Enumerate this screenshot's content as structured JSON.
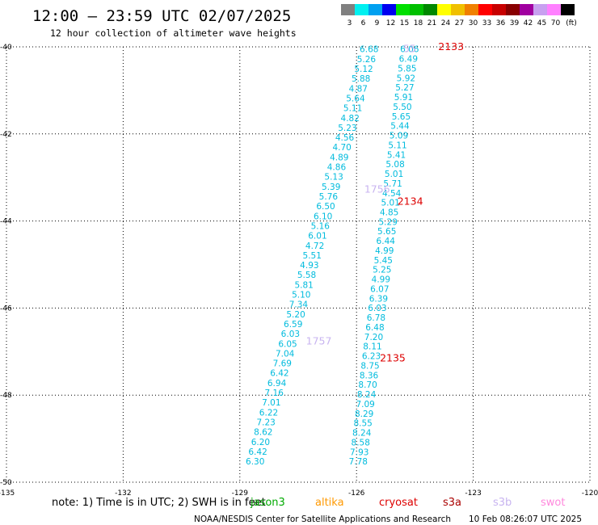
{
  "header": {
    "title": "12:00 – 23:59 UTC 02/07/2025",
    "subtitle": "12 hour collection of altimeter wave heights"
  },
  "footer": {
    "note": "note: 1) Time is in UTC; 2) SWH is in feet",
    "credit": "NOAA/NESDIS Center for Satellite Applications and Research",
    "timestamp": "10 Feb 08:26:07 UTC 2025"
  },
  "satellites": [
    {
      "name": "jason3",
      "color": "#00aa00"
    },
    {
      "name": "altika",
      "color": "#ff9900"
    },
    {
      "name": "cryosat",
      "color": "#dd0000"
    },
    {
      "name": "s3a",
      "color": "#aa0000"
    },
    {
      "name": "s3b",
      "color": "#c8b4f0"
    },
    {
      "name": "swot",
      "color": "#ff88dd"
    }
  ],
  "color_scale": {
    "unit": "(ft)",
    "bins": [
      {
        "label": "3",
        "color": "#808080"
      },
      {
        "label": "6",
        "color": "#00f0f0"
      },
      {
        "label": "9",
        "color": "#00a0f0"
      },
      {
        "label": "12",
        "color": "#0000f0"
      },
      {
        "label": "15",
        "color": "#00e000"
      },
      {
        "label": "18",
        "color": "#00c000"
      },
      {
        "label": "21",
        "color": "#008800"
      },
      {
        "label": "24",
        "color": "#ffff00"
      },
      {
        "label": "27",
        "color": "#f0c000"
      },
      {
        "label": "30",
        "color": "#f08000"
      },
      {
        "label": "33",
        "color": "#ff0000"
      },
      {
        "label": "36",
        "color": "#c80000"
      },
      {
        "label": "39",
        "color": "#880000"
      },
      {
        "label": "42",
        "color": "#a000a0"
      },
      {
        "label": "45",
        "color": "#c8a0f0"
      },
      {
        "label": "70",
        "color": "#ff80ff"
      },
      {
        "label": "",
        "color": "#000000"
      }
    ]
  },
  "chart_data": {
    "type": "scatter",
    "xlim": [
      -135,
      -120
    ],
    "ylim": [
      -50,
      -40
    ],
    "x_ticks": [
      -135,
      -132,
      -129,
      -126,
      -123,
      -120
    ],
    "y_ticks": [
      -40,
      -42,
      -44,
      -46,
      -48,
      -50
    ],
    "grid": true,
    "value_color": "#00bbdd",
    "series": [
      {
        "pass_labels": [
          {
            "text": "1756",
            "lon": -125.8,
            "lat": -43.27,
            "color": "#c8b4f0"
          },
          {
            "text": "1757",
            "lon": -127.3,
            "lat": -46.76,
            "color": "#c8b4f0"
          }
        ],
        "start": {
          "lon": -125.92,
          "lat": -40.05
        },
        "end": {
          "lon": -128.85,
          "lat": -49.52
        },
        "values": [
          6.68,
          5.26,
          5.12,
          5.88,
          4.87,
          5.64,
          5.11,
          4.82,
          5.23,
          4.56,
          4.7,
          4.89,
          4.86,
          5.13,
          5.39,
          5.76,
          6.5,
          6.1,
          5.16,
          6.01,
          4.72,
          5.51,
          4.93,
          5.58,
          5.81,
          5.1,
          7.34,
          5.2,
          6.59,
          6.03,
          6.05,
          7.04,
          7.69,
          6.42,
          6.94,
          7.16,
          7.01,
          6.22,
          7.23,
          8.62,
          6.2,
          6.42,
          6.3
        ]
      },
      {
        "pass_labels": [
          {
            "text": "2133",
            "lon": -123.9,
            "lat": -40.0,
            "color": "#dd0000"
          },
          {
            "text": "2134",
            "lon": -124.95,
            "lat": -43.55,
            "color": "#dd0000"
          },
          {
            "text": "2135",
            "lon": -125.4,
            "lat": -47.15,
            "color": "#dd0000"
          },
          {
            "text": "55",
            "lon": -124.8,
            "lat": -40.05,
            "color": "#c8b4f0"
          }
        ],
        "start": {
          "lon": -124.88,
          "lat": -40.05
        },
        "end": {
          "lon": -126.2,
          "lat": -49.52
        },
        "values": [
          6.06,
          6.49,
          5.85,
          5.92,
          5.27,
          5.91,
          5.5,
          5.65,
          5.44,
          5.09,
          5.11,
          5.41,
          5.08,
          5.01,
          5.71,
          4.54,
          5.01,
          4.85,
          5.29,
          5.65,
          6.44,
          4.99,
          5.45,
          5.25,
          4.99,
          6.07,
          6.39,
          6.03,
          6.78,
          6.48,
          7.2,
          8.11,
          6.23,
          8.75,
          8.36,
          8.7,
          8.24,
          7.09,
          8.29,
          8.55,
          8.24,
          8.58,
          7.93,
          7.78
        ]
      }
    ]
  }
}
